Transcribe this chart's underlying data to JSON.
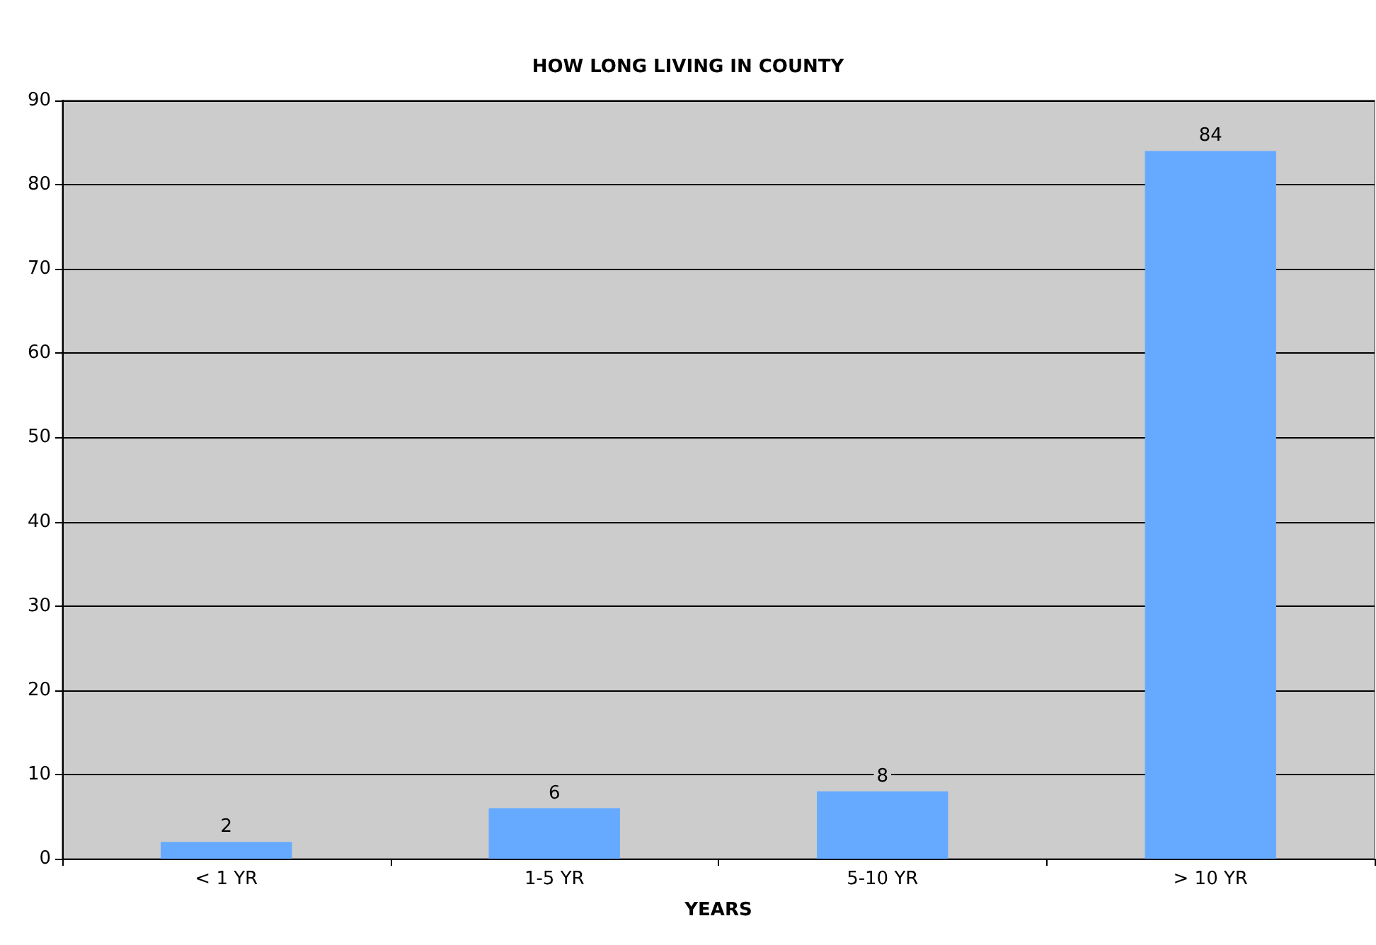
{
  "chart_data": {
    "type": "bar",
    "title": "HOW LONG LIVING IN COUNTY",
    "xlabel": "YEARS",
    "categories": [
      "< 1 YR",
      "1-5 YR",
      "5-10 YR",
      "> 10 YR"
    ],
    "values": [
      2,
      6,
      8,
      84
    ],
    "color": "#66aaff",
    "ylim": [
      0,
      90
    ],
    "yticks": [
      0,
      10,
      20,
      30,
      40,
      50,
      60,
      70,
      80,
      90
    ],
    "grid": "y",
    "data_labels": true
  }
}
